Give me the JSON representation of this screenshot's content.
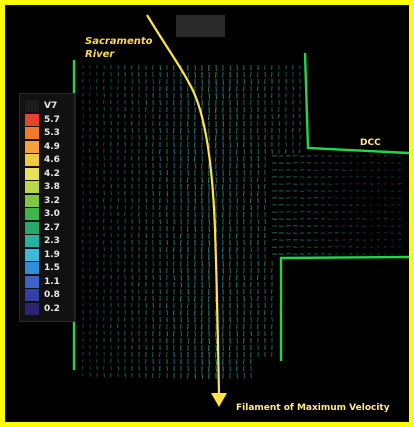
{
  "labels": {
    "river_line1": "Sacramento",
    "river_line2": "River",
    "dcc": "DCC",
    "filament": "Filament of Maximum Velocity"
  },
  "legend": {
    "entries": [
      {
        "value": "V7",
        "color": "#1c1c1c"
      },
      {
        "value": "5.7",
        "color": "#e8442c"
      },
      {
        "value": "5.3",
        "color": "#f07a2a"
      },
      {
        "value": "4.9",
        "color": "#f5a23a"
      },
      {
        "value": "4.6",
        "color": "#f2c84a"
      },
      {
        "value": "4.2",
        "color": "#e8e35a"
      },
      {
        "value": "3.8",
        "color": "#b9d84a"
      },
      {
        "value": "3.2",
        "color": "#7fc646"
      },
      {
        "value": "3.0",
        "color": "#3fb44a"
      },
      {
        "value": "2.7",
        "color": "#2aa86a"
      },
      {
        "value": "2.3",
        "color": "#28b2a2"
      },
      {
        "value": "1.9",
        "color": "#3fb7d8"
      },
      {
        "value": "1.5",
        "color": "#2f8ed6"
      },
      {
        "value": "1.1",
        "color": "#3d62c8"
      },
      {
        "value": "0.8",
        "color": "#3340a8"
      },
      {
        "value": "0.2",
        "color": "#2a2474"
      }
    ]
  },
  "colors": {
    "frame": "#ffff00",
    "background": "#000000",
    "banks": "#1fd84a",
    "filament_arrow": "#ffe34a",
    "vectors": "#2fa39a"
  }
}
